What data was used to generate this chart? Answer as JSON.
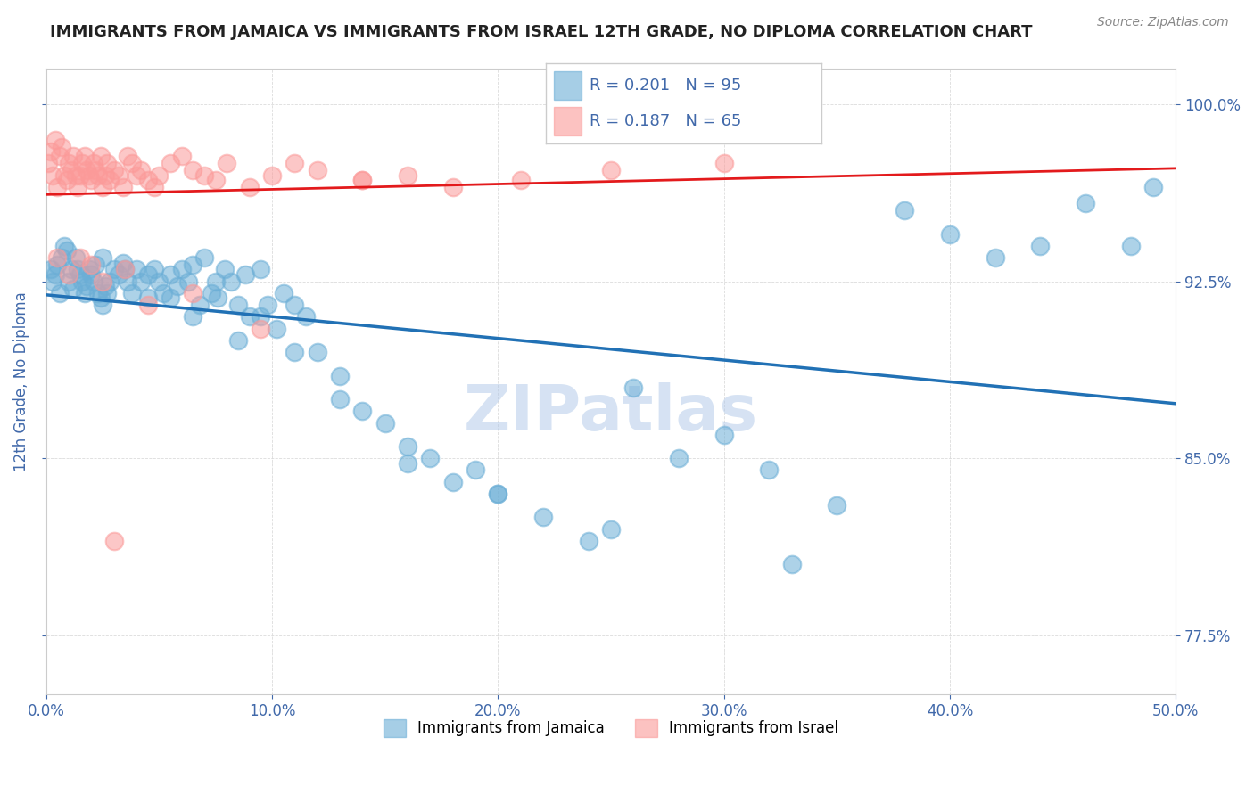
{
  "title": "IMMIGRANTS FROM JAMAICA VS IMMIGRANTS FROM ISRAEL 12TH GRADE, NO DIPLOMA CORRELATION CHART",
  "source": "Source: ZipAtlas.com",
  "xlabel": "",
  "ylabel": "12th Grade, No Diploma",
  "xlim": [
    0.0,
    50.0
  ],
  "ylim": [
    75.0,
    101.5
  ],
  "yticks": [
    77.5,
    85.0,
    92.5,
    100.0
  ],
  "xticks": [
    0.0,
    10.0,
    20.0,
    30.0,
    40.0,
    50.0
  ],
  "legend_jamaica": "Immigrants from Jamaica",
  "legend_israel": "Immigrants from Israel",
  "R_jamaica": "0.201",
  "N_jamaica": "95",
  "R_israel": "0.187",
  "N_israel": "65",
  "color_jamaica": "#6baed6",
  "color_israel": "#fb9a99",
  "trendline_jamaica_color": "#2171b5",
  "trendline_israel_color": "#e31a1c",
  "watermark": "ZIPatlas",
  "watermark_color": "#aec7e8",
  "background_color": "#ffffff",
  "title_fontsize": 13,
  "axis_label_color": "#4169aa",
  "tick_label_color": "#4169aa",
  "jamaica_scatter": {
    "x": [
      0.2,
      0.3,
      0.4,
      0.5,
      0.6,
      0.7,
      0.8,
      0.9,
      1.0,
      1.1,
      1.2,
      1.3,
      1.4,
      1.5,
      1.6,
      1.7,
      1.8,
      1.9,
      2.0,
      2.1,
      2.2,
      2.3,
      2.4,
      2.5,
      2.6,
      2.7,
      2.8,
      3.0,
      3.2,
      3.4,
      3.6,
      3.8,
      4.0,
      4.2,
      4.5,
      4.8,
      5.0,
      5.2,
      5.5,
      5.8,
      6.0,
      6.3,
      6.5,
      6.8,
      7.0,
      7.3,
      7.6,
      7.9,
      8.2,
      8.5,
      8.8,
      9.0,
      9.5,
      9.8,
      10.2,
      10.5,
      11.0,
      11.5,
      12.0,
      13.0,
      14.0,
      15.0,
      16.0,
      17.0,
      18.0,
      19.0,
      20.0,
      22.0,
      24.0,
      26.0,
      28.0,
      30.0,
      32.0,
      35.0,
      38.0,
      40.0,
      42.0,
      44.0,
      46.0,
      48.0,
      2.5,
      3.5,
      4.5,
      5.5,
      6.5,
      7.5,
      8.5,
      9.5,
      11.0,
      13.0,
      16.0,
      20.0,
      25.0,
      33.0,
      49.0
    ],
    "y": [
      93.0,
      92.5,
      92.8,
      93.2,
      92.0,
      93.5,
      94.0,
      93.8,
      92.5,
      93.0,
      92.2,
      93.5,
      93.0,
      92.8,
      92.5,
      92.0,
      92.3,
      93.0,
      92.8,
      92.5,
      93.2,
      92.0,
      91.8,
      93.5,
      92.3,
      92.0,
      92.5,
      93.0,
      92.8,
      93.3,
      92.5,
      92.0,
      93.0,
      92.5,
      92.8,
      93.0,
      92.5,
      92.0,
      91.8,
      92.3,
      93.0,
      92.5,
      93.2,
      91.5,
      93.5,
      92.0,
      91.8,
      93.0,
      92.5,
      91.5,
      92.8,
      91.0,
      93.0,
      91.5,
      90.5,
      92.0,
      91.5,
      91.0,
      89.5,
      88.5,
      87.0,
      86.5,
      85.5,
      85.0,
      84.0,
      84.5,
      83.5,
      82.5,
      81.5,
      88.0,
      85.0,
      86.0,
      84.5,
      83.0,
      95.5,
      94.5,
      93.5,
      94.0,
      95.8,
      94.0,
      91.5,
      93.0,
      91.8,
      92.8,
      91.0,
      92.5,
      90.0,
      91.0,
      89.5,
      87.5,
      84.8,
      83.5,
      82.0,
      80.5,
      96.5
    ]
  },
  "israel_scatter": {
    "x": [
      0.1,
      0.2,
      0.3,
      0.4,
      0.5,
      0.6,
      0.7,
      0.8,
      0.9,
      1.0,
      1.1,
      1.2,
      1.3,
      1.4,
      1.5,
      1.6,
      1.7,
      1.8,
      1.9,
      2.0,
      2.1,
      2.2,
      2.3,
      2.4,
      2.5,
      2.6,
      2.7,
      2.8,
      3.0,
      3.2,
      3.4,
      3.6,
      3.8,
      4.0,
      4.2,
      4.5,
      4.8,
      5.0,
      5.5,
      6.0,
      6.5,
      7.0,
      7.5,
      8.0,
      9.0,
      10.0,
      11.0,
      12.0,
      14.0,
      16.0,
      18.0,
      21.0,
      25.0,
      30.0,
      3.0,
      0.5,
      1.0,
      1.5,
      2.0,
      2.5,
      3.5,
      4.5,
      6.5,
      9.5,
      14.0
    ],
    "y": [
      97.5,
      98.0,
      97.0,
      98.5,
      96.5,
      97.8,
      98.2,
      97.0,
      96.8,
      97.5,
      97.2,
      97.8,
      97.0,
      96.5,
      97.0,
      97.5,
      97.8,
      97.2,
      97.0,
      96.8,
      97.5,
      97.2,
      97.0,
      97.8,
      96.5,
      97.0,
      97.5,
      96.8,
      97.2,
      97.0,
      96.5,
      97.8,
      97.5,
      97.0,
      97.2,
      96.8,
      96.5,
      97.0,
      97.5,
      97.8,
      97.2,
      97.0,
      96.8,
      97.5,
      96.5,
      97.0,
      97.5,
      97.2,
      96.8,
      97.0,
      96.5,
      96.8,
      97.2,
      97.5,
      81.5,
      93.5,
      92.8,
      93.5,
      93.2,
      92.5,
      93.0,
      91.5,
      92.0,
      90.5,
      96.8
    ]
  }
}
